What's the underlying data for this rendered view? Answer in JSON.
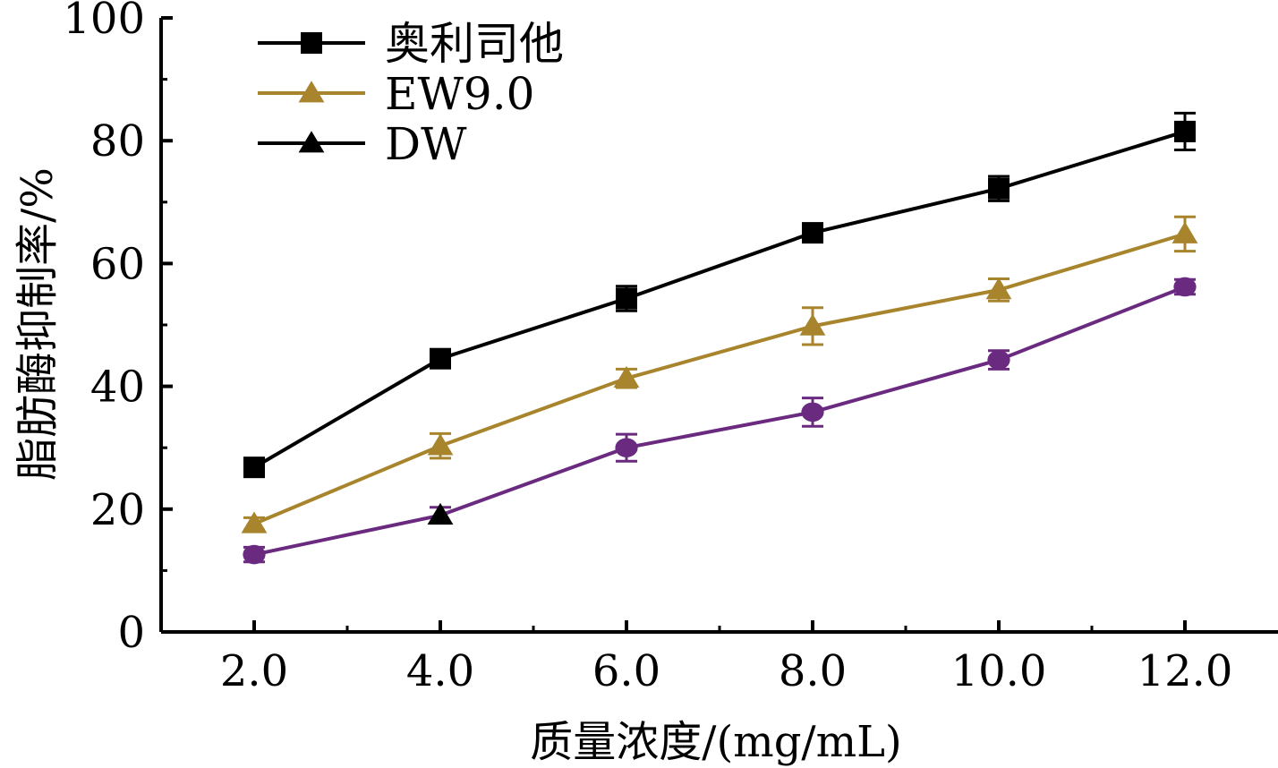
{
  "chart_data": {
    "type": "line",
    "title": "",
    "xlabel": "质量浓度/(mg/mL)",
    "ylabel": "脂肪酶抑制率/%",
    "x": [
      2.0,
      4.0,
      6.0,
      8.0,
      10.0,
      12.0
    ],
    "x_tick_labels": [
      "2.0",
      "4.0",
      "6.0",
      "8.0",
      "10.0",
      "12.0"
    ],
    "xlim": [
      1.0,
      13.0
    ],
    "ylim": [
      0,
      100
    ],
    "y_ticks": [
      0,
      20,
      40,
      60,
      80,
      100
    ],
    "y_tick_labels": [
      "0",
      "20",
      "40",
      "60",
      "80",
      "100"
    ],
    "grid": false,
    "legend_position": "top-left",
    "legend": [
      {
        "label": "奥利司他",
        "color": "#000000",
        "marker": "square"
      },
      {
        "label": "EW9.0",
        "color": "#a8842c",
        "marker": "triangle"
      },
      {
        "label": "DW",
        "color": "#000000",
        "marker": "triangle"
      }
    ],
    "series": [
      {
        "color": "#000000",
        "marker": "square",
        "values": [
          26.8,
          44.5,
          54.3,
          65.0,
          72.2,
          81.5
        ],
        "errors": [
          0.8,
          1.2,
          2.0,
          0.8,
          2.0,
          3.0
        ]
      },
      {
        "color": "#a8842c",
        "marker": "triangle",
        "values": [
          17.6,
          30.3,
          41.3,
          49.8,
          55.7,
          64.8
        ],
        "errors": [
          1.0,
          2.0,
          1.5,
          3.0,
          1.8,
          2.8
        ]
      },
      {
        "color": "#6a2a80",
        "marker": "circle",
        "values": [
          12.6,
          19.0,
          30.0,
          35.8,
          44.3,
          56.2
        ],
        "errors": [
          1.2,
          1.3,
          2.2,
          2.3,
          1.5,
          1.2
        ],
        "marker_overrides": {
          "1": {
            "marker": "triangle",
            "color": "#000000"
          }
        }
      }
    ]
  }
}
